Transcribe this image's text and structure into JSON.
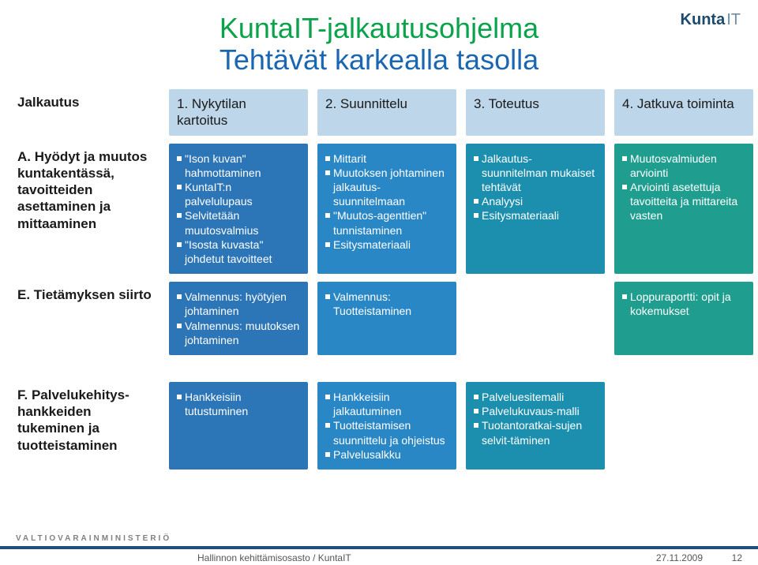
{
  "brand": {
    "name": "Kunta",
    "suffix": "IT"
  },
  "title": {
    "line1": "KuntaIT-jalkautusohjelma",
    "line2": "Tehtävät karkealla tasolla"
  },
  "col_headers": {
    "row": "Jalkautus",
    "c1": "1. Nykytilan kartoitus",
    "c2": "2. Suunnittelu",
    "c3": "3. Toteutus",
    "c4": "4. Jatkuva toiminta"
  },
  "rows": {
    "A": {
      "head": "A. Hyödyt ja muutos kuntakentässä, tavoitteiden asettaminen ja mittaaminen",
      "c1": [
        "\"Ison kuvan\" hahmottaminen",
        "KuntaIT:n palvelulupaus",
        "Selvitetään muutosvalmius",
        "\"Isosta kuvasta\" johdetut tavoitteet"
      ],
      "c2": [
        "Mittarit",
        "Muutoksen johtaminen jalkautus-suunnitelmaan",
        "\"Muutos-agenttien\" tunnistaminen",
        "Esitysmateriaali"
      ],
      "c3": [
        "Jalkautus-suunnitelman mukaiset tehtävät",
        "Analyysi",
        "Esitysmateriaali"
      ],
      "c4": [
        "Muutosvalmiuden arviointi",
        "Arviointi asetettuja tavoitteita ja mittareita vasten"
      ]
    },
    "E": {
      "head": "E. Tietämyksen siirto",
      "c1": [
        "Valmennus: hyötyjen johtaminen",
        "Valmennus: muutoksen johtaminen"
      ],
      "c2": [
        "Valmennus: Tuotteistaminen"
      ],
      "c4": [
        "Loppuraportti: opit ja kokemukset"
      ]
    },
    "F": {
      "head": "F. Palvelukehitys-hankkeiden tukeminen ja tuotteistaminen",
      "c1": [
        "Hankkeisiin tutustuminen"
      ],
      "c2": [
        "Hankkeisiin jalkautuminen",
        "Tuotteistamisen suunnittelu ja ohjeistus",
        "Palvelusalkku"
      ],
      "c3": [
        "Palveluesitemalli",
        "Palvelukuvaus-malli",
        "Tuotantoratkai-sujen selvit-täminen"
      ]
    }
  },
  "colors": {
    "colhead_bg": "#bdd6e9",
    "p1": "#2c75b7",
    "p2": "#2987c6",
    "p3": "#1c8fae",
    "p4": "#1f9e8f",
    "title1": "#0aa24a",
    "title2": "#1a66b0"
  },
  "footer": {
    "ministry": "VALTIOVARAINMINISTERIÖ",
    "dept": "Hallinnon kehittämisosasto / KuntaIT",
    "date": "27.11.2009",
    "page": "12"
  }
}
